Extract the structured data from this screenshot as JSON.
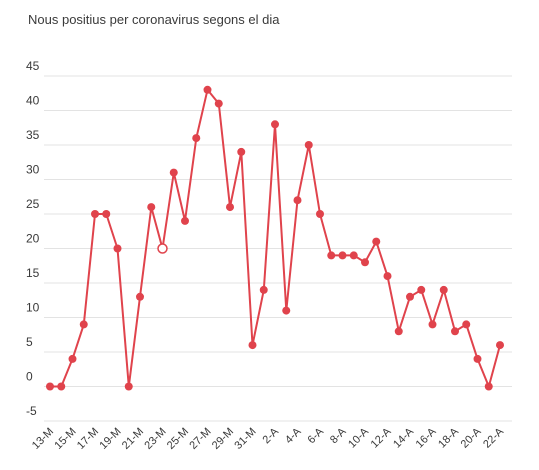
{
  "chart_data": {
    "type": "line",
    "title": "Nous positius per coronavirus segons el dia",
    "xlabel": "",
    "ylabel": "",
    "ylim": [
      -5,
      45
    ],
    "yticks": [
      -5,
      0,
      5,
      10,
      15,
      20,
      25,
      30,
      35,
      40,
      45
    ],
    "grid": true,
    "legend": "none",
    "series_color": "#e0434c",
    "x": [
      "13-M",
      "14-M",
      "15-M",
      "16-M",
      "17-M",
      "18-M",
      "19-M",
      "20-M",
      "21-M",
      "22-M",
      "23-M",
      "24-M",
      "25-M",
      "26-M",
      "27-M",
      "28-M",
      "29-M",
      "30-M",
      "31-M",
      "1-A",
      "2-A",
      "3-A",
      "4-A",
      "5-A",
      "6-A",
      "7-A",
      "8-A",
      "9-A",
      "10-A",
      "11-A",
      "12-A",
      "13-A",
      "14-A",
      "15-A",
      "16-A",
      "17-A",
      "18-A",
      "19-A",
      "20-A",
      "21-A",
      "22-A"
    ],
    "xtick_labels": [
      "13-M",
      "15-M",
      "17-M",
      "19-M",
      "21-M",
      "23-M",
      "25-M",
      "27-M",
      "29-M",
      "31-M",
      "2-A",
      "4-A",
      "6-A",
      "8-A",
      "10-A",
      "12-A",
      "14-A",
      "16-A",
      "18-A",
      "20-A",
      "22-A"
    ],
    "series": [
      {
        "values": [
          0,
          0,
          4,
          9,
          25,
          25,
          20,
          0,
          13,
          26,
          20,
          31,
          24,
          36,
          43,
          41,
          26,
          34,
          6,
          14,
          38,
          11,
          27,
          35,
          25,
          19,
          19,
          19,
          18,
          21,
          16,
          8,
          13,
          14,
          9,
          14,
          8,
          9,
          4,
          0,
          6
        ],
        "highlighted_index": 10
      }
    ]
  }
}
